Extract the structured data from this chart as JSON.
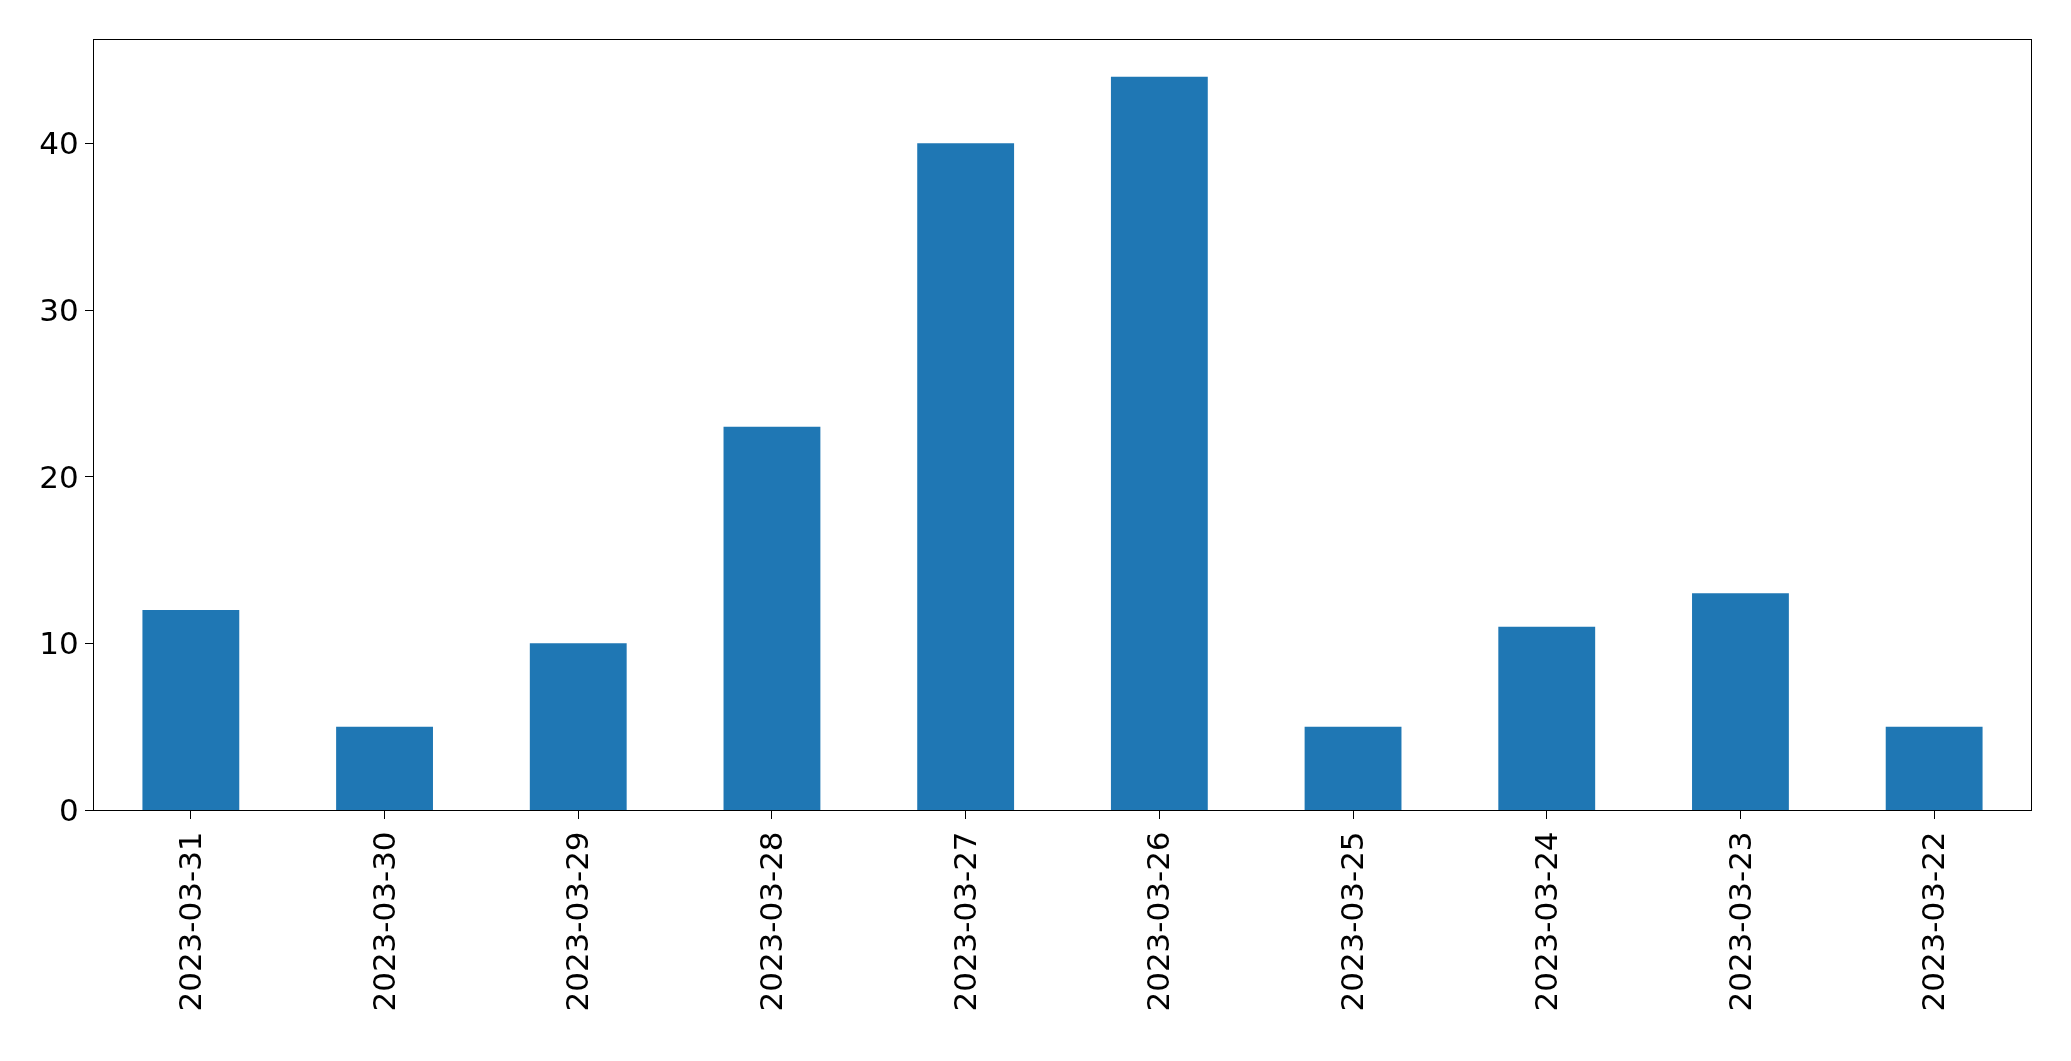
{
  "chart_data": {
    "type": "bar",
    "categories": [
      "2023-03-31",
      "2023-03-30",
      "2023-03-29",
      "2023-03-28",
      "2023-03-27",
      "2023-03-26",
      "2023-03-25",
      "2023-03-24",
      "2023-03-23",
      "2023-03-22"
    ],
    "values": [
      12,
      5,
      10,
      23,
      40,
      44,
      5,
      11,
      13,
      5
    ],
    "color": "#1f77b4",
    "ylim": [
      0,
      46.2
    ],
    "yticks": [
      0,
      10,
      20,
      30,
      40
    ]
  }
}
